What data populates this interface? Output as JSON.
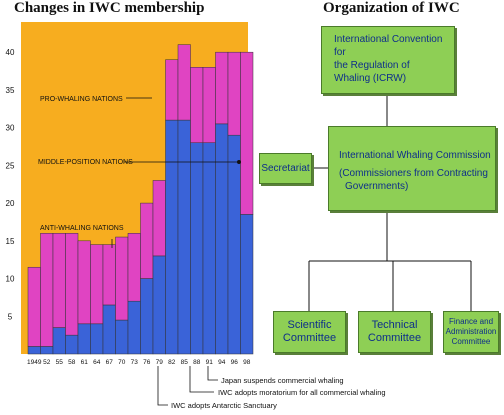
{
  "titles": {
    "left": "Changes in IWC membership",
    "right": "Organization of IWC"
  },
  "colors": {
    "background": "#f7ad1f",
    "pro_whaling": "#e044c2",
    "anti_whaling": "#3a63d8",
    "box_fill": "#8ecf55",
    "box_text": "#0e2f8a"
  },
  "chart_data": {
    "type": "bar",
    "stacked": true,
    "categories": [
      "1949",
      "52",
      "55",
      "58",
      "61",
      "64",
      "67",
      "70",
      "73",
      "76",
      "79",
      "82",
      "85",
      "88",
      "91",
      "94",
      "96",
      "98"
    ],
    "series": [
      {
        "name": "ANTI-WHALING NATIONS",
        "values": [
          1,
          1,
          3.5,
          2.5,
          4,
          4,
          6.5,
          4.5,
          7,
          10,
          13,
          31,
          31,
          28,
          28,
          30.5,
          29,
          18.5
        ]
      },
      {
        "name": "PRO-WHALING NATIONS",
        "values": [
          10.5,
          15,
          12.5,
          13.5,
          11,
          10.5,
          8,
          11,
          9,
          10,
          10,
          8,
          10,
          10,
          10,
          9.5,
          11,
          21.5
        ]
      }
    ],
    "yticks": [
      5,
      10,
      15,
      20,
      25,
      30,
      35,
      40
    ],
    "ylim": [
      0,
      44
    ],
    "labels": {
      "pro": "PRO-WHALING NATIONS",
      "middle": "MIDDLE-POSITION NATIONS",
      "anti": "ANTI-WHALING NATIONS"
    },
    "annotations": [
      "Japan suspends commercial whaling",
      "IWC adopts moratorium for all commercial whaling",
      "IWC adopts Antarctic Sanctuary"
    ]
  },
  "org": {
    "icrw": [
      "International Convention for",
      "the Regulation of Whaling (ICRW)"
    ],
    "secretariat": "Secretariat",
    "commission": [
      "International Whaling Commission",
      "(Commissioners from Contracting",
      "Governments)"
    ],
    "scientific": [
      "Scientific",
      "Committee"
    ],
    "technical": [
      "Technical",
      "Committee"
    ],
    "finance": [
      "Finance and",
      "Administration",
      "Committee"
    ]
  }
}
